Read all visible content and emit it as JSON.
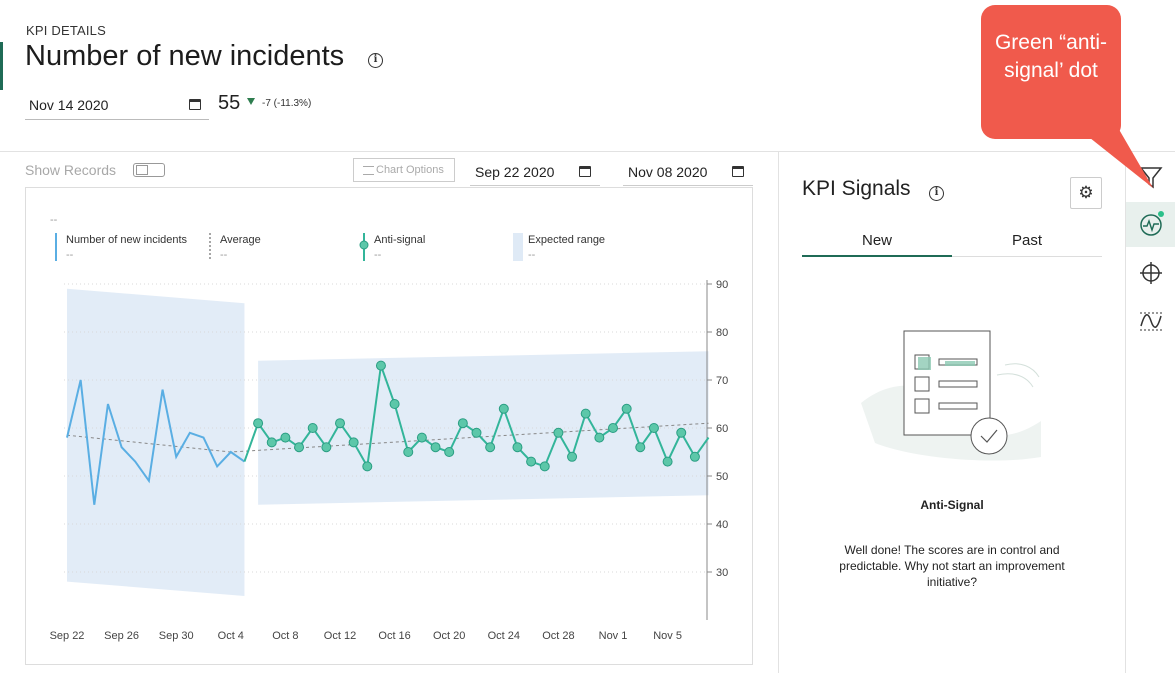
{
  "header": {
    "kpi_label": "KPI DETAILS",
    "title": "Number of new incidents",
    "date": "Nov 14 2020",
    "value": "55",
    "delta": "-7 (-11.3%)"
  },
  "toolbar": {
    "show_records": "Show Records",
    "chart_options": "Chart Options",
    "start_date": "Sep 22 2020",
    "end_date": "Nov 08 2020"
  },
  "legend": {
    "top_value": "--",
    "items": [
      {
        "label": "Number of new incidents",
        "value": "--"
      },
      {
        "label": "Average",
        "value": "--"
      },
      {
        "label": "Anti-signal",
        "value": "--"
      },
      {
        "label": "Expected range",
        "value": "--"
      }
    ]
  },
  "colors": {
    "series": "#5aaee3",
    "anti_signal": "#33b59a",
    "expected_range": "#dfeaf6",
    "average": "#888888",
    "accent": "#1f6b56",
    "callout": "#f05a4c"
  },
  "chart_data": {
    "type": "line",
    "x_tick_labels": [
      "Sep 22",
      "Sep 26",
      "Sep 30",
      "Oct 4",
      "Oct 8",
      "Oct 12",
      "Oct 16",
      "Oct 20",
      "Oct 24",
      "Oct 28",
      "Nov 1",
      "Nov 5"
    ],
    "y_ticks": [
      30,
      40,
      50,
      60,
      70,
      80,
      90
    ],
    "ylim": [
      22,
      92
    ],
    "x_start": "Sep 22",
    "series": [
      {
        "name": "Number of new incidents",
        "values": [
          58,
          70,
          44,
          65,
          56,
          53,
          49,
          68,
          54,
          59,
          58,
          52,
          55,
          53
        ]
      },
      {
        "name": "Anti-signal",
        "values": [
          61,
          57,
          58,
          56,
          60,
          56,
          61,
          57,
          52,
          73,
          65,
          55,
          58,
          56,
          55,
          61,
          59,
          56,
          64,
          56,
          53,
          52,
          59,
          54,
          63,
          58,
          60,
          64,
          56,
          60,
          53,
          59,
          54,
          58
        ]
      }
    ],
    "average": [
      {
        "x": "Sep 22",
        "y": 58.5
      },
      {
        "x": "Oct 4",
        "y": 55
      },
      {
        "x": "Nov 8",
        "y": 61
      }
    ],
    "expected_range": {
      "before": {
        "from": "Sep 22",
        "to": "Oct 5",
        "upper": [
          89,
          86
        ],
        "lower": [
          28,
          25
        ]
      },
      "after": {
        "from": "Oct 6",
        "to": "Nov 8",
        "upper": [
          74,
          76
        ],
        "lower": [
          44,
          46
        ]
      }
    }
  },
  "signals": {
    "title": "KPI Signals",
    "tabs": [
      {
        "label": "New",
        "active": true
      },
      {
        "label": "Past",
        "active": false
      }
    ],
    "anti_title": "Anti-Signal",
    "anti_desc": "Well done! The scores are in control and predictable. Why not start an improvement initiative?"
  },
  "rail": {
    "icons": [
      "filter-icon",
      "signals-icon",
      "target-icon",
      "limits-icon"
    ]
  },
  "callout": {
    "text": "Green “anti- signal’ dot"
  }
}
